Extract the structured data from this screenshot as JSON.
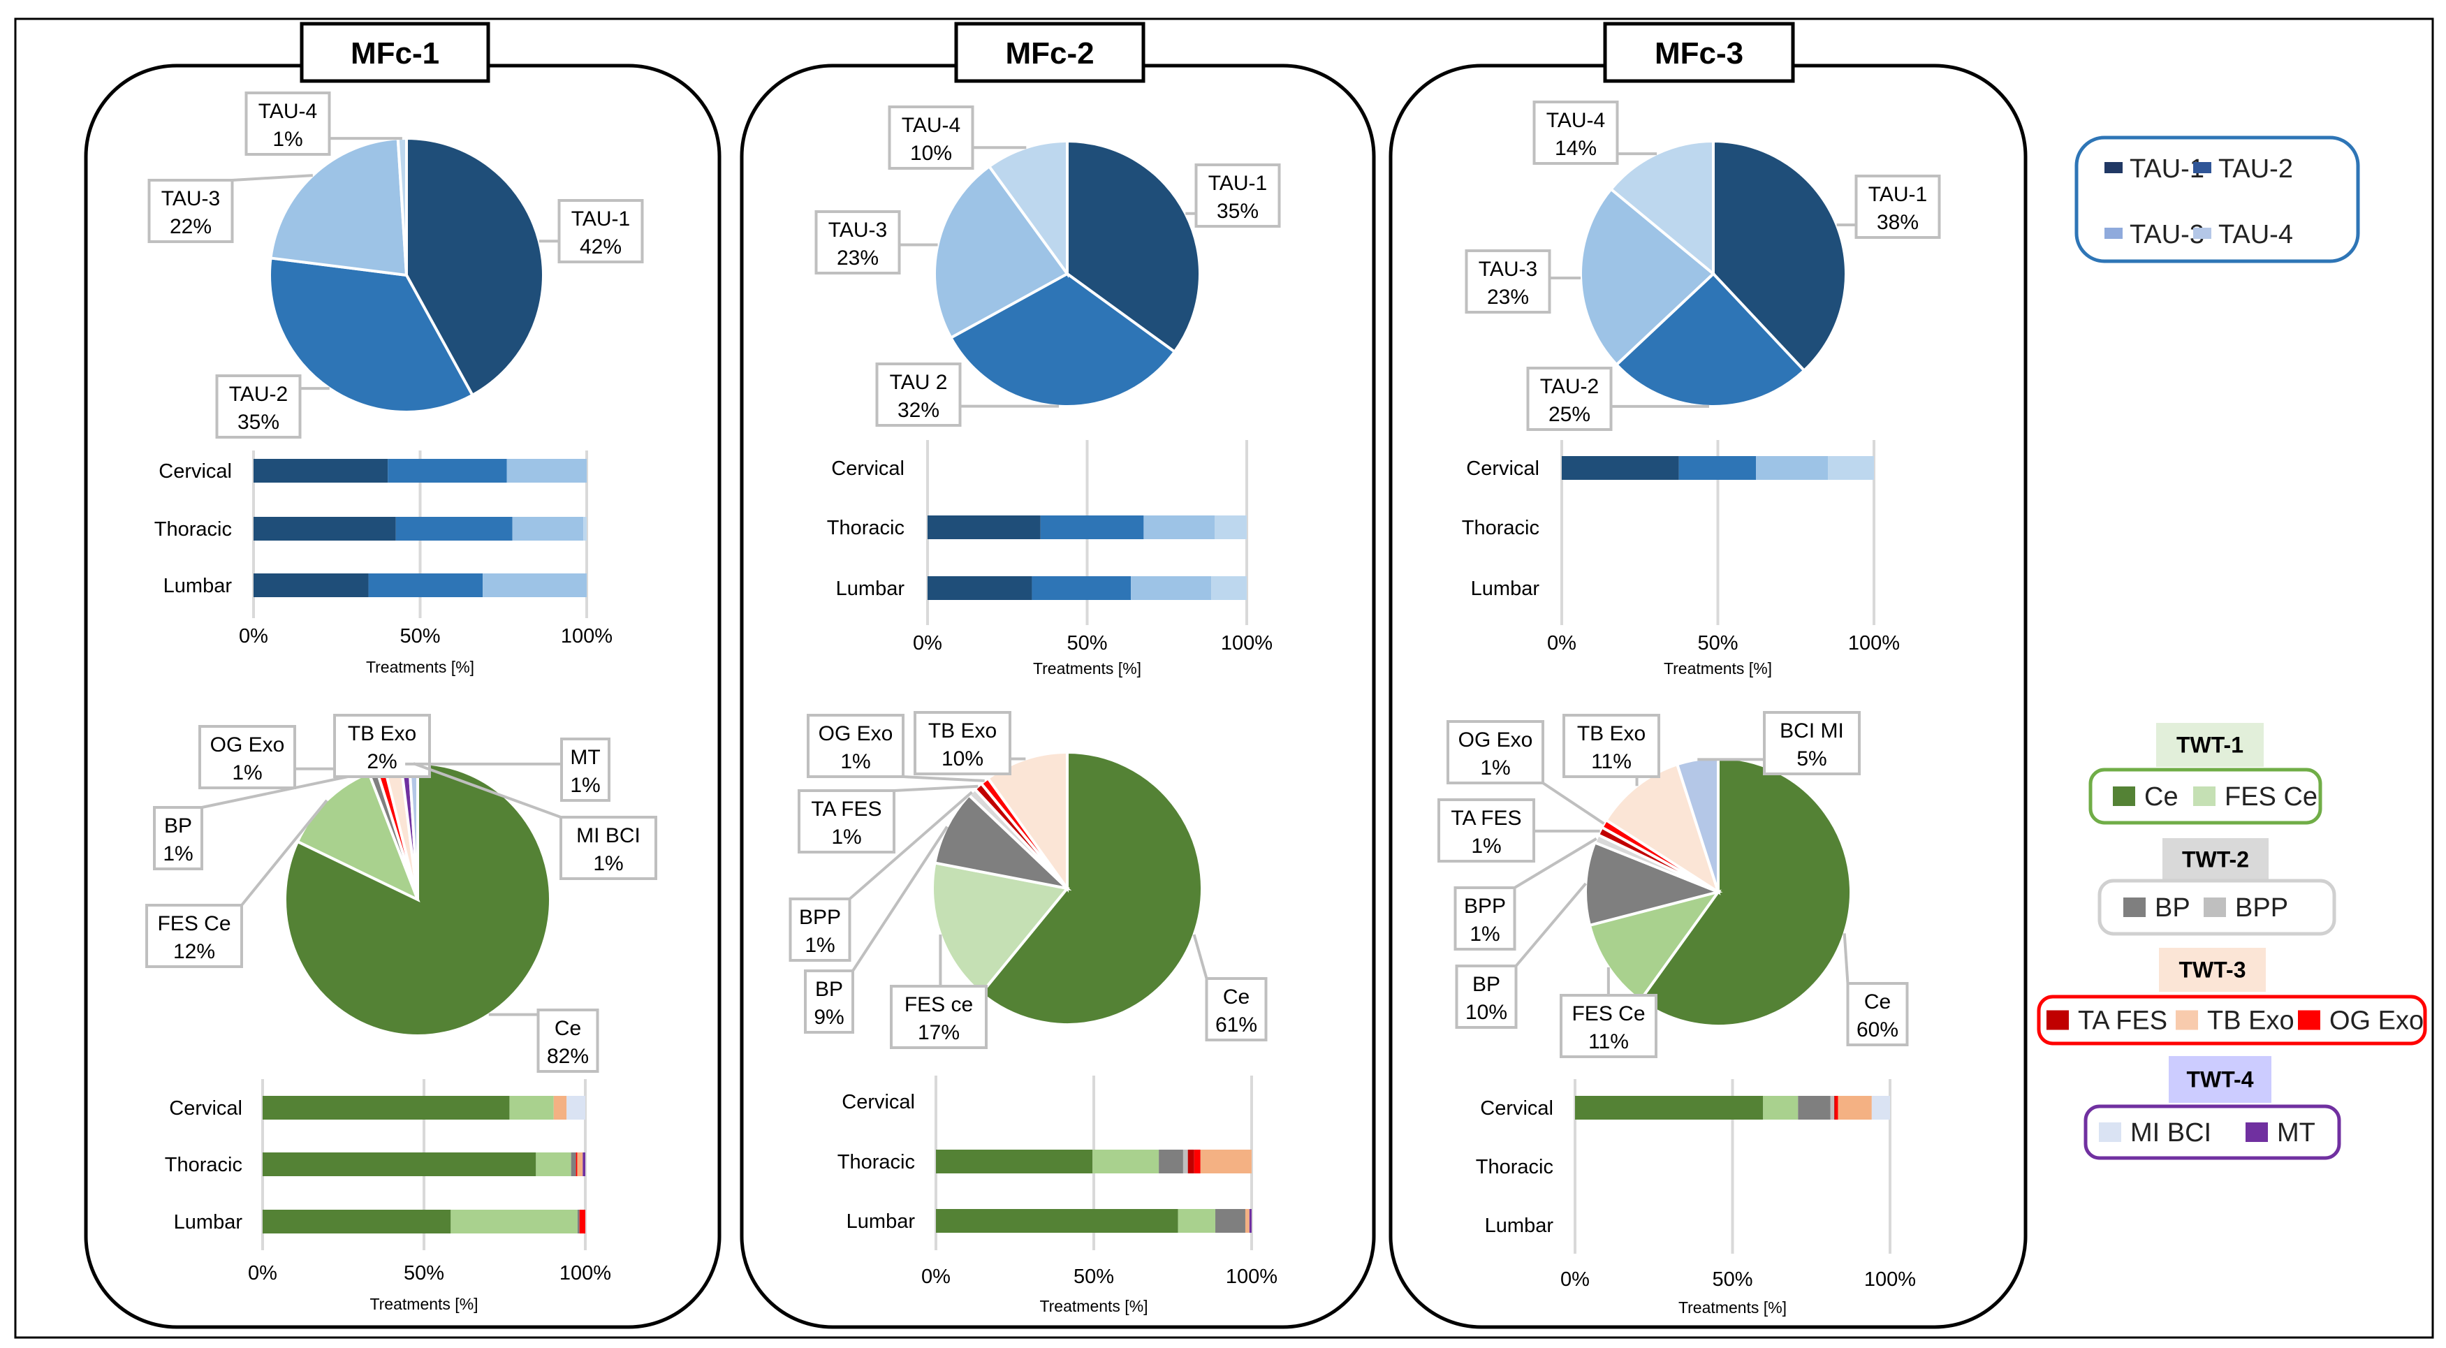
{
  "panels": [
    {
      "title": "MFc-1"
    },
    {
      "title": "MFc-2"
    },
    {
      "title": "MFc-3"
    }
  ],
  "legend_tau": {
    "border_color": "#2e75b6",
    "items": [
      {
        "label": "TAU-1",
        "color": "#203864"
      },
      {
        "label": "TAU-2",
        "color": "#2f5597"
      },
      {
        "label": "TAU-3",
        "color": "#8faadc"
      },
      {
        "label": "TAU-4",
        "color": "#b4c7e7"
      }
    ]
  },
  "legend_twt": [
    {
      "header": "TWT-1",
      "header_bg": "#e2efda",
      "border_color": "#70ad47",
      "items": [
        {
          "label": "Ce",
          "color": "#548235"
        },
        {
          "label": "FES Ce",
          "color": "#c5e0b4"
        }
      ]
    },
    {
      "header": "TWT-2",
      "header_bg": "#d9d9d9",
      "border_color": "#d0d0d0",
      "items": [
        {
          "label": "BP",
          "color": "#7f7f7f"
        },
        {
          "label": "BPP",
          "color": "#bfbfbf"
        }
      ]
    },
    {
      "header": "TWT-3",
      "header_bg": "#fbe5d6",
      "border_color": "#ff0000",
      "items": [
        {
          "label": "TA FES",
          "color": "#c00000"
        },
        {
          "label": "TB Exo",
          "color": "#f8cbad"
        },
        {
          "label": "OG Exo",
          "color": "#ff0000"
        }
      ]
    },
    {
      "header": "TWT-4",
      "header_bg": "#ccccff",
      "border_color": "#7030a0",
      "items": [
        {
          "label": "MI BCI",
          "color": "#dae3f3"
        },
        {
          "label": "MT",
          "color": "#7030a0"
        }
      ]
    }
  ],
  "chart_data": [
    {
      "panel": "MFc-1",
      "type": "pie",
      "slices": [
        {
          "label": "TAU-1",
          "value": 42,
          "display": "42%",
          "color": "#1f4e79"
        },
        {
          "label": "TAU-2",
          "value": 35,
          "display": "35%",
          "color": "#2e75b6"
        },
        {
          "label": "TAU-3",
          "value": 22,
          "display": "22%",
          "color": "#9dc3e6"
        },
        {
          "label": "TAU-4",
          "value": 1,
          "display": "1%",
          "color": "#bdd7ee"
        }
      ]
    },
    {
      "panel": "MFc-1",
      "type": "bar",
      "stacked": true,
      "orientation": "horizontal",
      "categories": [
        "Cervical",
        "Thoracic",
        "Lumbar"
      ],
      "xlabel": "Treatments [%]",
      "xlim": [
        0,
        100
      ],
      "ticks": [
        "0%",
        "50%",
        "100%"
      ],
      "grid": true,
      "series": [
        {
          "name": "TAU-1",
          "color": "#1f4e79",
          "values": [
            40.3,
            42.7,
            34.5
          ]
        },
        {
          "name": "TAU-2",
          "color": "#2e75b6",
          "values": [
            35.7,
            35.0,
            34.3
          ]
        },
        {
          "name": "TAU-3",
          "color": "#9dc3e6",
          "values": [
            24.0,
            21.3,
            31.2
          ]
        },
        {
          "name": "TAU-4",
          "color": "#bdd7ee",
          "values": [
            0,
            1.0,
            0
          ]
        }
      ]
    },
    {
      "panel": "MFc-1",
      "type": "pie",
      "slices": [
        {
          "label": "Ce",
          "value": 82,
          "display": "82%",
          "color": "#548235"
        },
        {
          "label": "FES Ce",
          "value": 12,
          "display": "12%",
          "color": "#a9d18e"
        },
        {
          "label": "BP",
          "value": 1,
          "display": "1%",
          "color": "#7f7f7f"
        },
        {
          "label": "OG Exo",
          "value": 1,
          "display": "1%",
          "color": "#ff0000"
        },
        {
          "label": "TB Exo",
          "value": 2,
          "display": "2%",
          "color": "#fbe5d6"
        },
        {
          "label": "MT",
          "value": 1,
          "display": "1%",
          "color": "#7030a0"
        },
        {
          "label": "MI BCI",
          "value": 1,
          "display": "1%",
          "color": "#b4c7e7"
        }
      ]
    },
    {
      "panel": "MFc-1",
      "type": "bar",
      "stacked": true,
      "orientation": "horizontal",
      "categories": [
        "Cervical",
        "Thoracic",
        "Lumbar"
      ],
      "xlabel": "Treatments [%]",
      "xlim": [
        0,
        100
      ],
      "ticks": [
        "0%",
        "50%",
        "100%"
      ],
      "grid": true,
      "series": [
        {
          "name": "Ce",
          "color": "#548235",
          "values": [
            76.5,
            84.7,
            58.3
          ]
        },
        {
          "name": "FES Ce",
          "color": "#a9d18e",
          "values": [
            13.7,
            10.9,
            39.3
          ]
        },
        {
          "name": "BP",
          "color": "#7f7f7f",
          "values": [
            0,
            1.5,
            0.6
          ]
        },
        {
          "name": "BPP",
          "color": "#bfbfbf",
          "values": [
            0,
            0,
            0
          ]
        },
        {
          "name": "TA FES",
          "color": "#c00000",
          "values": [
            0,
            0,
            0
          ]
        },
        {
          "name": "OG Exo",
          "color": "#ff0000",
          "values": [
            0,
            0.4,
            1.8
          ]
        },
        {
          "name": "TB Exo",
          "color": "#f4b183",
          "values": [
            4.0,
            1.7,
            0
          ]
        },
        {
          "name": "MI BCI",
          "color": "#dae3f3",
          "values": [
            5.8,
            0,
            0
          ]
        },
        {
          "name": "MT",
          "color": "#7030a0",
          "values": [
            0,
            0.8,
            0
          ]
        }
      ]
    },
    {
      "panel": "MFc-2",
      "type": "pie",
      "slices": [
        {
          "label": "TAU-1",
          "value": 35,
          "display": "35%",
          "color": "#1f4e79"
        },
        {
          "label": "TAU 2",
          "value": 32,
          "display": "32%",
          "color": "#2e75b6"
        },
        {
          "label": "TAU-3",
          "value": 23,
          "display": "23%",
          "color": "#9dc3e6"
        },
        {
          "label": "TAU-4",
          "value": 10,
          "display": "10%",
          "color": "#bdd7ee"
        }
      ]
    },
    {
      "panel": "MFc-2",
      "type": "bar",
      "stacked": true,
      "orientation": "horizontal",
      "categories": [
        "Cervical",
        "Thoracic",
        "Lumbar"
      ],
      "xlabel": "Treatments [%]",
      "xlim": [
        0,
        100
      ],
      "ticks": [
        "0%",
        "50%",
        "100%"
      ],
      "grid": true,
      "series": [
        {
          "name": "TAU-1",
          "color": "#1f4e79",
          "values": [
            0,
            35.4,
            32.7
          ]
        },
        {
          "name": "TAU-2",
          "color": "#2e75b6",
          "values": [
            0,
            32.3,
            31.0
          ]
        },
        {
          "name": "TAU-3",
          "color": "#9dc3e6",
          "values": [
            0,
            22.3,
            25.2
          ]
        },
        {
          "name": "TAU-4",
          "color": "#bdd7ee",
          "values": [
            0,
            10.0,
            11.1
          ]
        }
      ]
    },
    {
      "panel": "MFc-2",
      "type": "pie",
      "slices": [
        {
          "label": "Ce",
          "value": 61,
          "display": "61%",
          "color": "#548235"
        },
        {
          "label": "FES ce",
          "value": 17,
          "display": "17%",
          "color": "#c5e0b4"
        },
        {
          "label": "BP",
          "value": 9,
          "display": "9%",
          "color": "#7f7f7f"
        },
        {
          "label": "BPP",
          "value": 1,
          "display": "1%",
          "color": "#d9d9d9"
        },
        {
          "label": "TA FES",
          "value": 1,
          "display": "1%",
          "color": "#c00000"
        },
        {
          "label": "OG Exo",
          "value": 1,
          "display": "1%",
          "color": "#ff0000"
        },
        {
          "label": "TB Exo",
          "value": 10,
          "display": "10%",
          "color": "#fbe5d6"
        }
      ]
    },
    {
      "panel": "MFc-2",
      "type": "bar",
      "stacked": true,
      "orientation": "horizontal",
      "categories": [
        "Cervical",
        "Thoracic",
        "Lumbar"
      ],
      "xlabel": "Treatments [%]",
      "xlim": [
        0,
        100
      ],
      "ticks": [
        "0%",
        "50%",
        "100%"
      ],
      "grid": true,
      "series": [
        {
          "name": "Ce",
          "color": "#548235",
          "values": [
            0,
            49.6,
            76.7
          ]
        },
        {
          "name": "FES Ce",
          "color": "#a9d18e",
          "values": [
            0,
            21.0,
            11.8
          ]
        },
        {
          "name": "BP",
          "color": "#7f7f7f",
          "values": [
            0,
            7.7,
            9.5
          ]
        },
        {
          "name": "BPP",
          "color": "#bfbfbf",
          "values": [
            0,
            1.5,
            0
          ]
        },
        {
          "name": "TA FES",
          "color": "#c00000",
          "values": [
            0,
            2.0,
            0
          ]
        },
        {
          "name": "OG Exo",
          "color": "#ff0000",
          "values": [
            0,
            2.0,
            0
          ]
        },
        {
          "name": "TB Exo",
          "color": "#f4b183",
          "values": [
            0,
            16.2,
            1.3
          ]
        },
        {
          "name": "MI BCI",
          "color": "#dae3f3",
          "values": [
            0,
            0,
            0
          ]
        },
        {
          "name": "MT",
          "color": "#7030a0",
          "values": [
            0,
            0,
            0.7
          ]
        }
      ]
    },
    {
      "panel": "MFc-3",
      "type": "pie",
      "slices": [
        {
          "label": "TAU-1",
          "value": 38,
          "display": "38%",
          "color": "#1f4e79"
        },
        {
          "label": "TAU-2",
          "value": 25,
          "display": "25%",
          "color": "#2e75b6"
        },
        {
          "label": "TAU-3",
          "value": 23,
          "display": "23%",
          "color": "#9dc3e6"
        },
        {
          "label": "TAU-4",
          "value": 14,
          "display": "14%",
          "color": "#bdd7ee"
        }
      ]
    },
    {
      "panel": "MFc-3",
      "type": "bar",
      "stacked": true,
      "orientation": "horizontal",
      "categories": [
        "Cervical",
        "Thoracic",
        "Lumbar"
      ],
      "xlabel": "Treatments [%]",
      "xlim": [
        0,
        100
      ],
      "ticks": [
        "0%",
        "50%",
        "100%"
      ],
      "grid": true,
      "series": [
        {
          "name": "TAU-1",
          "color": "#1f4e79",
          "values": [
            37.5,
            0,
            0
          ]
        },
        {
          "name": "TAU-2",
          "color": "#2e75b6",
          "values": [
            24.7,
            0,
            0
          ]
        },
        {
          "name": "TAU-3",
          "color": "#9dc3e6",
          "values": [
            23.1,
            0,
            0
          ]
        },
        {
          "name": "TAU-4",
          "color": "#bdd7ee",
          "values": [
            14.7,
            0,
            0
          ]
        }
      ]
    },
    {
      "panel": "MFc-3",
      "type": "pie",
      "slices": [
        {
          "label": "Ce",
          "value": 60,
          "display": "60%",
          "color": "#548235"
        },
        {
          "label": "FES Ce",
          "value": 11,
          "display": "11%",
          "color": "#a9d18e"
        },
        {
          "label": "BP",
          "value": 10,
          "display": "10%",
          "color": "#7f7f7f"
        },
        {
          "label": "BPP",
          "value": 1,
          "display": "1%",
          "color": "#d9d9d9"
        },
        {
          "label": "TA FES",
          "value": 1,
          "display": "1%",
          "color": "#c00000"
        },
        {
          "label": "OG Exo",
          "value": 1,
          "display": "1%",
          "color": "#ff0000"
        },
        {
          "label": "TB Exo",
          "value": 11,
          "display": "11%",
          "color": "#fbe5d6"
        },
        {
          "label": "BCI MI",
          "value": 5,
          "display": "5%",
          "color": "#b4c7e7"
        }
      ]
    },
    {
      "panel": "MFc-3",
      "type": "bar",
      "stacked": true,
      "orientation": "horizontal",
      "categories": [
        "Cervical",
        "Thoracic",
        "Lumbar"
      ],
      "xlabel": "Treatments [%]",
      "xlim": [
        0,
        100
      ],
      "ticks": [
        "0%",
        "50%",
        "100%"
      ],
      "grid": true,
      "series": [
        {
          "name": "Ce",
          "color": "#548235",
          "values": [
            59.7,
            0,
            0
          ]
        },
        {
          "name": "FES Ce",
          "color": "#a9d18e",
          "values": [
            11.1,
            0,
            0
          ]
        },
        {
          "name": "BP",
          "color": "#7f7f7f",
          "values": [
            10.3,
            0,
            0
          ]
        },
        {
          "name": "BPP",
          "color": "#bfbfbf",
          "values": [
            1.2,
            0,
            0
          ]
        },
        {
          "name": "TA FES",
          "color": "#c00000",
          "values": [
            0.3,
            0,
            0
          ]
        },
        {
          "name": "OG Exo",
          "color": "#ff0000",
          "values": [
            0.9,
            0,
            0
          ]
        },
        {
          "name": "TB Exo",
          "color": "#f4b183",
          "values": [
            10.7,
            0,
            0
          ]
        },
        {
          "name": "MI BCI",
          "color": "#dae3f3",
          "values": [
            5.8,
            0,
            0
          ]
        },
        {
          "name": "MT",
          "color": "#7030a0",
          "values": [
            0,
            0,
            0
          ]
        }
      ]
    }
  ]
}
